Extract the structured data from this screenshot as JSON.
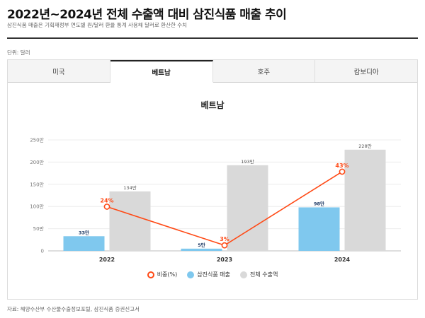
{
  "header": {
    "title": "2022년~2024년 전체 수출액 대비 삼진식품 매출 추이",
    "subtitle": "삼진식품 매출은 기획재정부 연도별 원/달러 환율 통계 사용해 달러로 환산한 수치",
    "unit": "단위: 달러"
  },
  "tabs": [
    {
      "label": "미국",
      "active": false
    },
    {
      "label": "베트남",
      "active": true
    },
    {
      "label": "호주",
      "active": false
    },
    {
      "label": "캄보디아",
      "active": false
    }
  ],
  "legend": {
    "ratio": "비중(%)",
    "sales": "삼진식품 매출",
    "exports": "전체 수출액"
  },
  "source": "자료: 해양수산부 수산물수출정보포털, 삼진식품 증권신고서",
  "colors": {
    "sales": "#7fc8ee",
    "exports": "#d9d9d9",
    "ratio": "#ff4a16"
  },
  "chart_data": {
    "type": "bar",
    "title": "베트남",
    "categories": [
      "2022",
      "2023",
      "2024"
    ],
    "ylim": [
      0,
      250
    ],
    "yticks": [
      "0",
      "50만",
      "100만",
      "150만",
      "200만",
      "250만"
    ],
    "grid": true,
    "legend_position": "bottom",
    "series": [
      {
        "name": "삼진식품 매출",
        "values": [
          33,
          5,
          98
        ],
        "labels": [
          "33만",
          "5만",
          "98만"
        ]
      },
      {
        "name": "전체 수출액",
        "values": [
          134,
          193,
          228
        ],
        "labels": [
          "134만",
          "193만",
          "228만"
        ]
      },
      {
        "name": "비중(%)",
        "type": "line",
        "values": [
          24,
          3,
          43
        ],
        "labels": [
          "24%",
          "3%",
          "43%"
        ]
      }
    ]
  }
}
